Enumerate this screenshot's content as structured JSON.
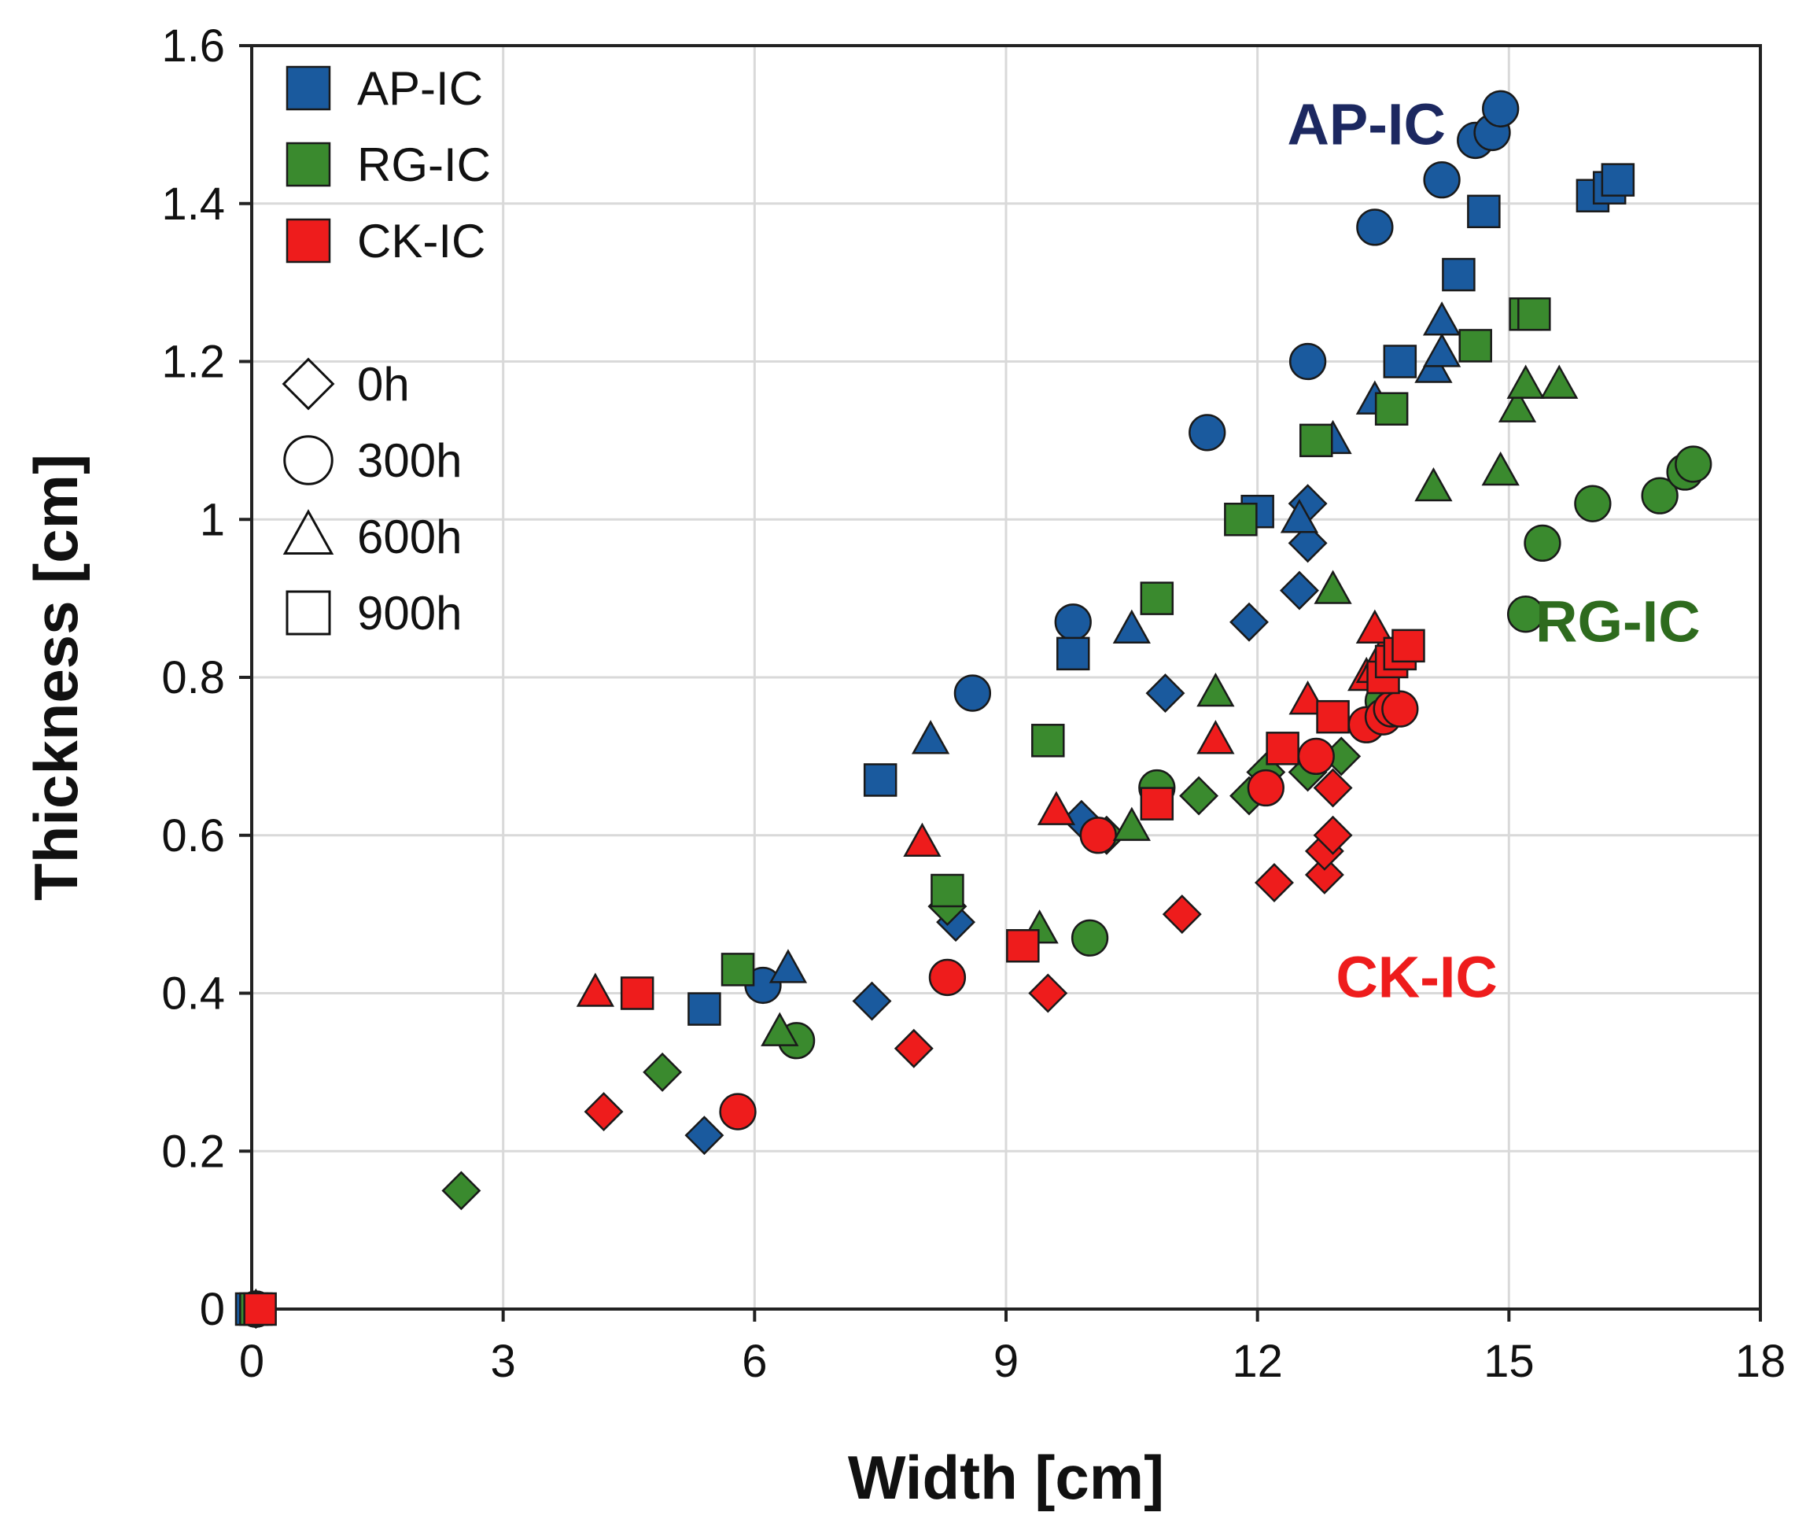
{
  "chart_data": {
    "type": "scatter",
    "title": "",
    "xlabel": "Width [cm]",
    "ylabel": "Thickness [cm]",
    "xlim": [
      0,
      18
    ],
    "ylim": [
      0,
      1.6
    ],
    "x_ticks": [
      "0",
      "3",
      "6",
      "9",
      "12",
      "15",
      "18"
    ],
    "y_ticks": [
      "0",
      "0.2",
      "0.4",
      "0.6",
      "0.8",
      "1",
      "1.2",
      "1.4",
      "1.6"
    ],
    "grid": true,
    "legend_position": "top-left",
    "legend_series": [
      {
        "label": "AP-IC",
        "color": "#1a5a9e"
      },
      {
        "label": "RG-IC",
        "color": "#3a8a2e"
      },
      {
        "label": "CK-IC",
        "color": "#ee1c1c"
      }
    ],
    "legend_markers": [
      {
        "label": "0h",
        "shape": "diamond"
      },
      {
        "label": "300h",
        "shape": "circle"
      },
      {
        "label": "600h",
        "shape": "triangle"
      },
      {
        "label": "900h",
        "shape": "square"
      }
    ],
    "annotations": [
      {
        "text": "AP-IC",
        "x": 13.3,
        "y": 1.5,
        "color": "#1c2860"
      },
      {
        "text": "RG-IC",
        "x": 16.3,
        "y": 0.87,
        "color": "#2e6b1e"
      },
      {
        "text": "CK-IC",
        "x": 13.9,
        "y": 0.42,
        "color": "#ee1c1c"
      }
    ],
    "series": [
      {
        "group": "AP-IC",
        "marker": "diamond",
        "points": [
          [
            0.05,
            0.0
          ],
          [
            5.4,
            0.22
          ],
          [
            7.4,
            0.39
          ],
          [
            8.4,
            0.49
          ],
          [
            9.9,
            0.62
          ],
          [
            10.9,
            0.78
          ],
          [
            11.9,
            0.87
          ],
          [
            12.5,
            0.91
          ],
          [
            12.6,
            1.02
          ],
          [
            12.6,
            0.97
          ]
        ]
      },
      {
        "group": "AP-IC",
        "marker": "circle",
        "points": [
          [
            0.05,
            0.0
          ],
          [
            6.1,
            0.41
          ],
          [
            8.6,
            0.78
          ],
          [
            9.8,
            0.87
          ],
          [
            11.4,
            1.11
          ],
          [
            12.6,
            1.2
          ],
          [
            13.4,
            1.37
          ],
          [
            14.2,
            1.43
          ],
          [
            14.6,
            1.48
          ],
          [
            14.8,
            1.49
          ],
          [
            14.9,
            1.52
          ]
        ]
      },
      {
        "group": "AP-IC",
        "marker": "triangle",
        "points": [
          [
            0.05,
            0.0
          ],
          [
            6.4,
            0.43
          ],
          [
            8.1,
            0.72
          ],
          [
            10.5,
            0.86
          ],
          [
            12.5,
            1.0
          ],
          [
            12.9,
            1.1
          ],
          [
            13.4,
            1.15
          ],
          [
            14.1,
            1.19
          ],
          [
            14.2,
            1.21
          ],
          [
            14.2,
            1.25
          ]
        ]
      },
      {
        "group": "AP-IC",
        "marker": "square",
        "points": [
          [
            0.0,
            0.0
          ],
          [
            5.4,
            0.38
          ],
          [
            7.5,
            0.67
          ],
          [
            9.8,
            0.83
          ],
          [
            12.0,
            1.01
          ],
          [
            13.7,
            1.2
          ],
          [
            14.4,
            1.31
          ],
          [
            14.7,
            1.39
          ],
          [
            16.0,
            1.41
          ],
          [
            16.2,
            1.42
          ],
          [
            16.3,
            1.43
          ]
        ]
      },
      {
        "group": "RG-IC",
        "marker": "diamond",
        "points": [
          [
            0.05,
            0.0
          ],
          [
            2.5,
            0.15
          ],
          [
            4.9,
            0.3
          ],
          [
            8.3,
            0.51
          ],
          [
            10.2,
            0.6
          ],
          [
            11.3,
            0.65
          ],
          [
            11.9,
            0.65
          ],
          [
            12.1,
            0.68
          ],
          [
            12.6,
            0.68
          ],
          [
            13.0,
            0.7
          ]
        ]
      },
      {
        "group": "RG-IC",
        "marker": "circle",
        "points": [
          [
            0.05,
            0.0
          ],
          [
            6.5,
            0.34
          ],
          [
            10.0,
            0.47
          ],
          [
            10.8,
            0.66
          ],
          [
            13.5,
            0.77
          ],
          [
            15.2,
            0.88
          ],
          [
            15.4,
            0.97
          ],
          [
            16.0,
            1.02
          ],
          [
            16.8,
            1.03
          ],
          [
            17.1,
            1.06
          ],
          [
            17.2,
            1.07
          ]
        ]
      },
      {
        "group": "RG-IC",
        "marker": "triangle",
        "points": [
          [
            0.05,
            0.0
          ],
          [
            6.3,
            0.35
          ],
          [
            9.4,
            0.48
          ],
          [
            10.5,
            0.61
          ],
          [
            11.5,
            0.78
          ],
          [
            12.9,
            0.91
          ],
          [
            14.1,
            1.04
          ],
          [
            14.9,
            1.06
          ],
          [
            15.1,
            1.14
          ],
          [
            15.2,
            1.17
          ],
          [
            15.6,
            1.17
          ]
        ]
      },
      {
        "group": "RG-IC",
        "marker": "square",
        "points": [
          [
            0.05,
            0.0
          ],
          [
            5.8,
            0.43
          ],
          [
            8.3,
            0.53
          ],
          [
            9.5,
            0.72
          ],
          [
            10.8,
            0.9
          ],
          [
            11.8,
            1.0
          ],
          [
            12.7,
            1.1
          ],
          [
            13.6,
            1.14
          ],
          [
            14.6,
            1.22
          ],
          [
            15.2,
            1.26
          ],
          [
            15.3,
            1.26
          ]
        ]
      },
      {
        "group": "CK-IC",
        "marker": "diamond",
        "points": [
          [
            0.05,
            0.0
          ],
          [
            4.2,
            0.25
          ],
          [
            7.9,
            0.33
          ],
          [
            9.5,
            0.4
          ],
          [
            11.1,
            0.5
          ],
          [
            12.2,
            0.54
          ],
          [
            12.8,
            0.55
          ],
          [
            12.8,
            0.58
          ],
          [
            12.9,
            0.6
          ],
          [
            12.9,
            0.66
          ]
        ]
      },
      {
        "group": "CK-IC",
        "marker": "circle",
        "points": [
          [
            0.05,
            0.0
          ],
          [
            5.8,
            0.25
          ],
          [
            8.3,
            0.42
          ],
          [
            10.1,
            0.6
          ],
          [
            12.1,
            0.66
          ],
          [
            12.7,
            0.7
          ],
          [
            13.3,
            0.74
          ],
          [
            13.5,
            0.75
          ],
          [
            13.6,
            0.76
          ],
          [
            13.7,
            0.76
          ]
        ]
      },
      {
        "group": "CK-IC",
        "marker": "triangle",
        "points": [
          [
            0.05,
            0.0
          ],
          [
            4.1,
            0.4
          ],
          [
            8.0,
            0.59
          ],
          [
            9.6,
            0.63
          ],
          [
            11.5,
            0.72
          ],
          [
            12.6,
            0.77
          ],
          [
            13.3,
            0.8
          ],
          [
            13.4,
            0.81
          ],
          [
            13.5,
            0.83
          ],
          [
            13.4,
            0.86
          ]
        ]
      },
      {
        "group": "CK-IC",
        "marker": "square",
        "points": [
          [
            0.1,
            0.0
          ],
          [
            4.6,
            0.4
          ],
          [
            9.2,
            0.46
          ],
          [
            10.8,
            0.64
          ],
          [
            12.3,
            0.71
          ],
          [
            12.9,
            0.75
          ],
          [
            13.5,
            0.8
          ],
          [
            13.6,
            0.82
          ],
          [
            13.7,
            0.83
          ],
          [
            13.8,
            0.84
          ]
        ]
      }
    ]
  }
}
